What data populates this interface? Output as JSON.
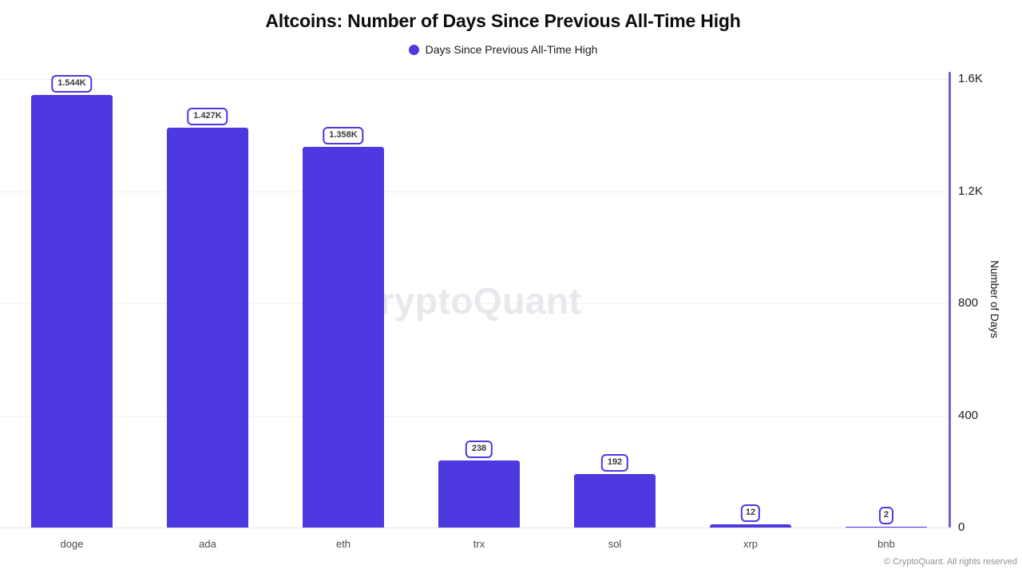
{
  "chart": {
    "title": "Altcoins: Number of Days Since Previous All-Time High",
    "legend_label": "Days Since Previous All-Time High",
    "ylabel": "Number of Days",
    "watermark": "CryptoQuant",
    "copyright": "© CryptoQuant. All rights reserved"
  },
  "colors": {
    "bar": "#4e38e0",
    "label_box_border": "#4e38e0",
    "y_axis_line": "#7a5ad8",
    "gridline": "#f1f1f3",
    "watermark": "#e9e9ed"
  },
  "chart_data": {
    "type": "bar",
    "title": "Altcoins: Number of Days Since Previous All-Time High",
    "series_name": "Days Since Previous All-Time High",
    "categories": [
      "doge",
      "ada",
      "eth",
      "trx",
      "sol",
      "xrp",
      "bnb"
    ],
    "values": [
      1544,
      1427,
      1358,
      238,
      192,
      12,
      2
    ],
    "value_labels": [
      "1.544K",
      "1.427K",
      "1.358K",
      "238",
      "192",
      "12",
      "2"
    ],
    "xlabel": "",
    "ylabel": "Number of Days",
    "ylim": [
      0,
      1600
    ],
    "y_ticks": [
      {
        "label": "0",
        "value": 0
      },
      {
        "label": "400",
        "value": 400
      },
      {
        "label": "800",
        "value": 800
      },
      {
        "label": "1.2K",
        "value": 1200
      },
      {
        "label": "1.6K",
        "value": 1600
      }
    ],
    "grid": true,
    "legend_position": "top",
    "yaxis_side": "right",
    "bar_color": "#4e38e0"
  }
}
